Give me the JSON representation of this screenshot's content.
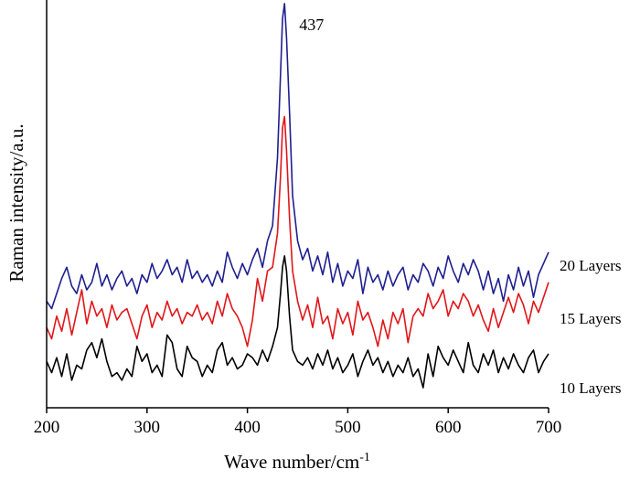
{
  "chart_data": {
    "type": "line",
    "xlabel": "Wave number/cm",
    "xlabel_sup": "-1",
    "ylabel": "Raman intensity/a.u.",
    "xlim": [
      200,
      700
    ],
    "ylim": [
      0,
      100
    ],
    "xticks": [
      200,
      300,
      400,
      500,
      600,
      700
    ],
    "grid": false,
    "annotation": {
      "text": "437",
      "x": 437
    },
    "series": [
      {
        "name": "10 Layers",
        "color": "#000000",
        "points": [
          [
            200,
            6
          ],
          [
            205,
            3
          ],
          [
            210,
            7
          ],
          [
            215,
            2
          ],
          [
            220,
            8
          ],
          [
            225,
            1
          ],
          [
            230,
            5
          ],
          [
            235,
            4
          ],
          [
            240,
            9
          ],
          [
            245,
            11
          ],
          [
            250,
            7
          ],
          [
            255,
            12
          ],
          [
            260,
            6
          ],
          [
            265,
            2
          ],
          [
            270,
            3
          ],
          [
            275,
            1
          ],
          [
            280,
            4
          ],
          [
            285,
            2
          ],
          [
            290,
            10
          ],
          [
            295,
            6
          ],
          [
            300,
            8
          ],
          [
            305,
            3
          ],
          [
            310,
            5
          ],
          [
            315,
            2
          ],
          [
            320,
            13
          ],
          [
            325,
            11
          ],
          [
            330,
            4
          ],
          [
            335,
            2
          ],
          [
            340,
            10
          ],
          [
            345,
            7
          ],
          [
            350,
            6
          ],
          [
            355,
            2
          ],
          [
            360,
            5
          ],
          [
            365,
            3
          ],
          [
            370,
            9
          ],
          [
            375,
            11
          ],
          [
            380,
            5
          ],
          [
            385,
            7
          ],
          [
            390,
            4
          ],
          [
            395,
            5
          ],
          [
            400,
            8
          ],
          [
            405,
            7
          ],
          [
            410,
            5
          ],
          [
            415,
            9
          ],
          [
            420,
            6
          ],
          [
            425,
            10
          ],
          [
            430,
            15
          ],
          [
            433,
            24
          ],
          [
            435,
            31
          ],
          [
            437,
            34
          ],
          [
            439,
            30
          ],
          [
            442,
            18
          ],
          [
            445,
            9
          ],
          [
            450,
            6
          ],
          [
            455,
            5
          ],
          [
            460,
            7
          ],
          [
            465,
            4
          ],
          [
            470,
            8
          ],
          [
            475,
            5
          ],
          [
            480,
            9
          ],
          [
            485,
            4
          ],
          [
            490,
            7
          ],
          [
            495,
            3
          ],
          [
            500,
            5
          ],
          [
            505,
            8
          ],
          [
            510,
            2
          ],
          [
            515,
            6
          ],
          [
            520,
            9
          ],
          [
            525,
            5
          ],
          [
            530,
            7
          ],
          [
            535,
            3
          ],
          [
            540,
            6
          ],
          [
            545,
            2
          ],
          [
            550,
            5
          ],
          [
            555,
            3
          ],
          [
            560,
            7
          ],
          [
            565,
            2
          ],
          [
            570,
            4
          ],
          [
            575,
            -1
          ],
          [
            580,
            8
          ],
          [
            585,
            2
          ],
          [
            590,
            10
          ],
          [
            595,
            7
          ],
          [
            600,
            5
          ],
          [
            605,
            9
          ],
          [
            610,
            6
          ],
          [
            615,
            3
          ],
          [
            620,
            11
          ],
          [
            625,
            5
          ],
          [
            630,
            3
          ],
          [
            635,
            8
          ],
          [
            640,
            5
          ],
          [
            645,
            9
          ],
          [
            650,
            3
          ],
          [
            655,
            7
          ],
          [
            660,
            4
          ],
          [
            665,
            8
          ],
          [
            670,
            5
          ],
          [
            675,
            3
          ],
          [
            680,
            7
          ],
          [
            685,
            9
          ],
          [
            690,
            3
          ],
          [
            695,
            6
          ],
          [
            700,
            8
          ]
        ]
      },
      {
        "name": "15  Layers",
        "color": "#e0161a",
        "points": [
          [
            200,
            15
          ],
          [
            205,
            12
          ],
          [
            210,
            18
          ],
          [
            215,
            14
          ],
          [
            220,
            20
          ],
          [
            225,
            13
          ],
          [
            230,
            19
          ],
          [
            235,
            25
          ],
          [
            240,
            16
          ],
          [
            245,
            22
          ],
          [
            250,
            18
          ],
          [
            255,
            20
          ],
          [
            260,
            15
          ],
          [
            265,
            21
          ],
          [
            270,
            17
          ],
          [
            275,
            19
          ],
          [
            280,
            20
          ],
          [
            285,
            16
          ],
          [
            290,
            12
          ],
          [
            295,
            18
          ],
          [
            300,
            21
          ],
          [
            305,
            15
          ],
          [
            310,
            19
          ],
          [
            315,
            17
          ],
          [
            320,
            22
          ],
          [
            325,
            18
          ],
          [
            330,
            20
          ],
          [
            335,
            16
          ],
          [
            340,
            19
          ],
          [
            345,
            18
          ],
          [
            350,
            21
          ],
          [
            355,
            17
          ],
          [
            360,
            19
          ],
          [
            365,
            16
          ],
          [
            370,
            22
          ],
          [
            375,
            18
          ],
          [
            380,
            24
          ],
          [
            385,
            20
          ],
          [
            390,
            18
          ],
          [
            395,
            15
          ],
          [
            400,
            10
          ],
          [
            405,
            17
          ],
          [
            410,
            28
          ],
          [
            415,
            22
          ],
          [
            420,
            30
          ],
          [
            425,
            31
          ],
          [
            430,
            40
          ],
          [
            433,
            55
          ],
          [
            435,
            68
          ],
          [
            437,
            71
          ],
          [
            439,
            62
          ],
          [
            442,
            44
          ],
          [
            445,
            30
          ],
          [
            450,
            22
          ],
          [
            455,
            17
          ],
          [
            460,
            21
          ],
          [
            465,
            15
          ],
          [
            470,
            23
          ],
          [
            475,
            16
          ],
          [
            480,
            18
          ],
          [
            485,
            12
          ],
          [
            490,
            20
          ],
          [
            495,
            16
          ],
          [
            500,
            19
          ],
          [
            505,
            13
          ],
          [
            510,
            22
          ],
          [
            515,
            17
          ],
          [
            520,
            19
          ],
          [
            525,
            15
          ],
          [
            530,
            10
          ],
          [
            535,
            17
          ],
          [
            540,
            12
          ],
          [
            545,
            19
          ],
          [
            550,
            16
          ],
          [
            555,
            20
          ],
          [
            560,
            11
          ],
          [
            565,
            18
          ],
          [
            570,
            20
          ],
          [
            575,
            18
          ],
          [
            580,
            24
          ],
          [
            585,
            20
          ],
          [
            590,
            22
          ],
          [
            595,
            25
          ],
          [
            600,
            18
          ],
          [
            605,
            22
          ],
          [
            610,
            20
          ],
          [
            615,
            24
          ],
          [
            620,
            22
          ],
          [
            625,
            18
          ],
          [
            630,
            21
          ],
          [
            635,
            17
          ],
          [
            640,
            14
          ],
          [
            645,
            20
          ],
          [
            650,
            15
          ],
          [
            655,
            19
          ],
          [
            660,
            23
          ],
          [
            665,
            19
          ],
          [
            670,
            24
          ],
          [
            675,
            21
          ],
          [
            680,
            16
          ],
          [
            685,
            22
          ],
          [
            690,
            19
          ],
          [
            695,
            23
          ],
          [
            700,
            27
          ]
        ]
      },
      {
        "name": "20 Layers",
        "color": "#1f1f8f",
        "points": [
          [
            200,
            22
          ],
          [
            205,
            20
          ],
          [
            210,
            24
          ],
          [
            215,
            28
          ],
          [
            220,
            31
          ],
          [
            225,
            26
          ],
          [
            230,
            24
          ],
          [
            235,
            29
          ],
          [
            240,
            25
          ],
          [
            245,
            27
          ],
          [
            250,
            32
          ],
          [
            255,
            26
          ],
          [
            260,
            29
          ],
          [
            265,
            25
          ],
          [
            270,
            28
          ],
          [
            275,
            30
          ],
          [
            280,
            26
          ],
          [
            285,
            28
          ],
          [
            290,
            24
          ],
          [
            295,
            29
          ],
          [
            300,
            27
          ],
          [
            305,
            32
          ],
          [
            310,
            28
          ],
          [
            315,
            30
          ],
          [
            320,
            33
          ],
          [
            325,
            29
          ],
          [
            330,
            31
          ],
          [
            335,
            27
          ],
          [
            340,
            33
          ],
          [
            345,
            28
          ],
          [
            350,
            30
          ],
          [
            355,
            27
          ],
          [
            360,
            29
          ],
          [
            365,
            26
          ],
          [
            370,
            30
          ],
          [
            375,
            27
          ],
          [
            380,
            35
          ],
          [
            385,
            31
          ],
          [
            390,
            28
          ],
          [
            395,
            32
          ],
          [
            400,
            29
          ],
          [
            405,
            33
          ],
          [
            410,
            36
          ],
          [
            415,
            31
          ],
          [
            420,
            38
          ],
          [
            425,
            42
          ],
          [
            430,
            60
          ],
          [
            433,
            82
          ],
          [
            435,
            97
          ],
          [
            437,
            101
          ],
          [
            439,
            92
          ],
          [
            442,
            72
          ],
          [
            445,
            50
          ],
          [
            450,
            38
          ],
          [
            455,
            33
          ],
          [
            460,
            36
          ],
          [
            465,
            30
          ],
          [
            470,
            34
          ],
          [
            475,
            29
          ],
          [
            480,
            35
          ],
          [
            485,
            27
          ],
          [
            490,
            32
          ],
          [
            495,
            26
          ],
          [
            500,
            30
          ],
          [
            505,
            28
          ],
          [
            510,
            33
          ],
          [
            515,
            24
          ],
          [
            520,
            31
          ],
          [
            525,
            27
          ],
          [
            530,
            29
          ],
          [
            535,
            25
          ],
          [
            540,
            30
          ],
          [
            545,
            26
          ],
          [
            550,
            29
          ],
          [
            555,
            31
          ],
          [
            560,
            25
          ],
          [
            565,
            29
          ],
          [
            570,
            27
          ],
          [
            575,
            32
          ],
          [
            580,
            30
          ],
          [
            585,
            26
          ],
          [
            590,
            31
          ],
          [
            595,
            28
          ],
          [
            600,
            34
          ],
          [
            605,
            30
          ],
          [
            610,
            27
          ],
          [
            615,
            32
          ],
          [
            620,
            29
          ],
          [
            625,
            33
          ],
          [
            630,
            30
          ],
          [
            635,
            25
          ],
          [
            640,
            30
          ],
          [
            645,
            24
          ],
          [
            650,
            28
          ],
          [
            655,
            22
          ],
          [
            660,
            29
          ],
          [
            665,
            25
          ],
          [
            670,
            31
          ],
          [
            675,
            26
          ],
          [
            680,
            30
          ],
          [
            685,
            23
          ],
          [
            690,
            29
          ],
          [
            695,
            32
          ],
          [
            700,
            35
          ]
        ]
      }
    ]
  }
}
